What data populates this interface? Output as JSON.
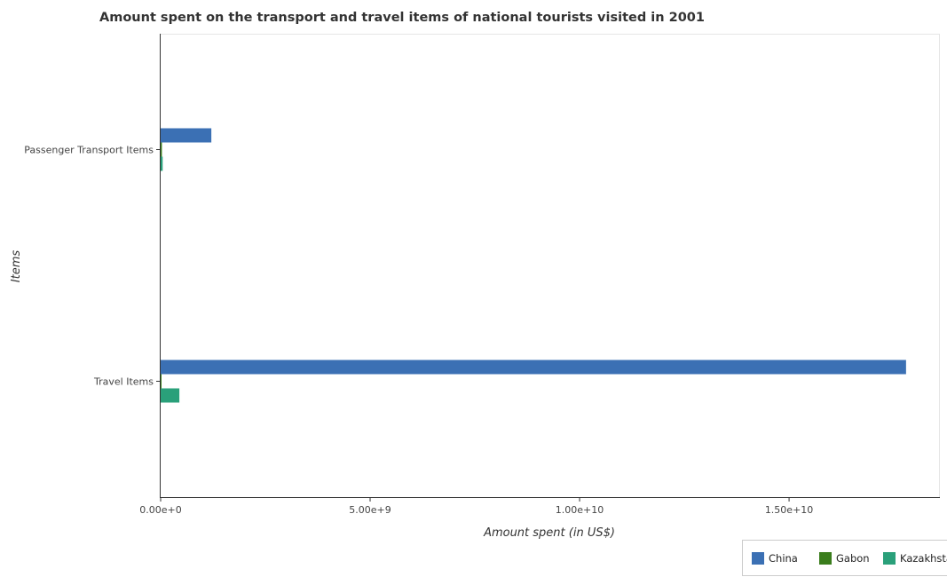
{
  "chart_data": {
    "type": "bar",
    "orientation": "horizontal",
    "title": "Amount spent on the transport and travel items of national tourists visited in 2001",
    "xlabel": "Amount spent (in US$)",
    "ylabel": "Items",
    "categories": [
      "Passenger Transport Items",
      "Travel Items"
    ],
    "series": [
      {
        "name": "China",
        "color": "#3b70b4",
        "values": [
          1210000000,
          17792000000
        ]
      },
      {
        "name": "Gabon",
        "color": "#3a7d1c",
        "values": [
          30000000,
          7000000
        ]
      },
      {
        "name": "Kazakhstan",
        "color": "#2aa07a",
        "values": [
          48000000,
          447000000
        ]
      }
    ],
    "xlim": [
      0,
      18600000000
    ],
    "xticks": [
      0,
      5000000000,
      10000000000,
      15000000000
    ],
    "xtick_labels": [
      "0.00e+0",
      "5.00e+9",
      "1.00e+10",
      "1.50e+10"
    ],
    "grid": false,
    "legend_position": "bottom-right"
  }
}
